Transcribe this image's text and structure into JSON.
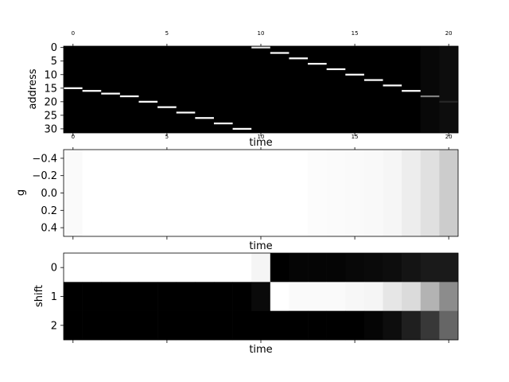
{
  "chart_data": [
    {
      "type": "heatmap",
      "xlabel": "time",
      "ylabel": "address",
      "x_ticks": [
        "0",
        "5",
        "10",
        "15",
        "20"
      ],
      "y_ticks": [
        "0",
        "5",
        "10",
        "15",
        "20",
        "25",
        "30"
      ],
      "xlim": [
        -0.5,
        20.5
      ],
      "ylim": [
        31.5,
        -0.5
      ],
      "colormap": "gray",
      "description_of_values": "one bright cell per time step",
      "peaks": [
        {
          "time": 0,
          "address": 15,
          "value": 1.0
        },
        {
          "time": 1,
          "address": 16,
          "value": 1.0
        },
        {
          "time": 2,
          "address": 17,
          "value": 1.0
        },
        {
          "time": 3,
          "address": 18,
          "value": 1.0
        },
        {
          "time": 4,
          "address": 20,
          "value": 1.0
        },
        {
          "time": 5,
          "address": 22,
          "value": 1.0
        },
        {
          "time": 6,
          "address": 24,
          "value": 1.0
        },
        {
          "time": 7,
          "address": 26,
          "value": 1.0
        },
        {
          "time": 8,
          "address": 28,
          "value": 1.0
        },
        {
          "time": 9,
          "address": 30,
          "value": 1.0
        },
        {
          "time": 10,
          "address": 0,
          "value": 0.9
        },
        {
          "time": 11,
          "address": 2,
          "value": 1.0
        },
        {
          "time": 12,
          "address": 4,
          "value": 1.0
        },
        {
          "time": 13,
          "address": 6,
          "value": 1.0
        },
        {
          "time": 14,
          "address": 8,
          "value": 1.0
        },
        {
          "time": 15,
          "address": 10,
          "value": 1.0
        },
        {
          "time": 16,
          "address": 12,
          "value": 1.0
        },
        {
          "time": 17,
          "address": 14,
          "value": 1.0
        },
        {
          "time": 18,
          "address": 16,
          "value": 1.0
        },
        {
          "time": 19,
          "address": 18,
          "value": 0.5
        },
        {
          "time": 20,
          "address": 20,
          "value": 0.15
        }
      ],
      "background_values": {
        "19": 0.03,
        "20": 0.05
      }
    },
    {
      "type": "heatmap",
      "xlabel": "time",
      "ylabel": "g",
      "x_ticks": [
        "0",
        "5",
        "10",
        "15",
        "20"
      ],
      "y_ticks": [
        "−0.4",
        "−0.2",
        "0.0",
        "0.2",
        "0.4"
      ],
      "colormap": "gray",
      "values": [
        0.98,
        1.0,
        1.0,
        1.0,
        1.0,
        1.0,
        1.0,
        1.0,
        1.0,
        1.0,
        1.0,
        1.0,
        1.0,
        0.99,
        0.985,
        0.98,
        0.975,
        0.965,
        0.93,
        0.88,
        0.8
      ]
    },
    {
      "type": "heatmap",
      "xlabel": "time",
      "ylabel": "shift",
      "x_ticks": [
        "0",
        "5",
        "10",
        "15",
        "20"
      ],
      "y_ticks": [
        "0",
        "1",
        "2"
      ],
      "colormap": "gray",
      "rows": [
        [
          1.0,
          1.0,
          1.0,
          1.0,
          1.0,
          1.0,
          1.0,
          1.0,
          1.0,
          1.0,
          0.96,
          0.0,
          0.02,
          0.02,
          0.02,
          0.03,
          0.04,
          0.05,
          0.08,
          0.1,
          0.1
        ],
        [
          0.0,
          0.0,
          0.0,
          0.0,
          0.0,
          0.0,
          0.0,
          0.0,
          0.0,
          0.0,
          0.04,
          1.0,
          0.98,
          0.98,
          0.98,
          0.97,
          0.96,
          0.9,
          0.86,
          0.7,
          0.55
        ],
        [
          0.0,
          0.0,
          0.0,
          0.0,
          0.0,
          0.0,
          0.0,
          0.0,
          0.0,
          0.0,
          0.0,
          0.0,
          0.0,
          0.0,
          0.0,
          0.0,
          0.02,
          0.05,
          0.12,
          0.22,
          0.4
        ]
      ]
    }
  ]
}
